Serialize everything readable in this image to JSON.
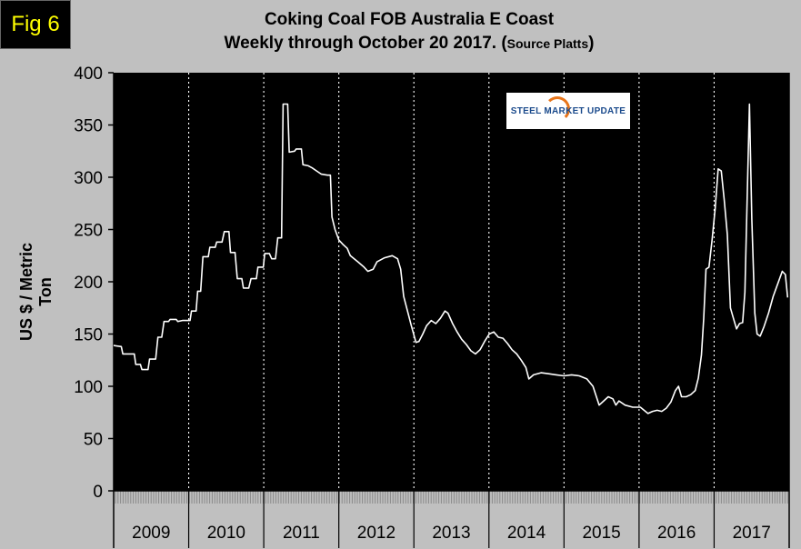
{
  "figure_tag": "Fig 6",
  "title_line1": "Coking Coal FOB Australia E Coast",
  "title_line2": "Weekly through October 20 2017. (",
  "title_source": "Source Platts",
  "title_close": ")",
  "logo_text": "STEEL MARKET UPDATE",
  "colors": {
    "background": "#c0c0c0",
    "plot_bg": "#000000",
    "line": "#ffffff",
    "badge_text": "#ffff00"
  },
  "chart_data": {
    "type": "line",
    "title": "Coking Coal FOB Australia E Coast Weekly through October 20 2017. (Source Platts)",
    "ylabel": "US $ / Metric Ton",
    "xlabel": "",
    "ylim": [
      0,
      400
    ],
    "yticks": [
      0,
      50,
      100,
      150,
      200,
      250,
      300,
      350,
      400
    ],
    "grid": false,
    "year_labels": [
      "2009",
      "2010",
      "2011",
      "2012",
      "2013",
      "2014",
      "2015",
      "2016",
      "2017"
    ],
    "x_range": [
      2009.0,
      2017.85
    ],
    "series": [
      {
        "values": [
          [
            2009.0,
            139
          ],
          [
            2009.1,
            138
          ],
          [
            2009.12,
            131
          ],
          [
            2009.27,
            131
          ],
          [
            2009.29,
            121
          ],
          [
            2009.35,
            121
          ],
          [
            2009.37,
            116
          ],
          [
            2009.45,
            116
          ],
          [
            2009.47,
            126
          ],
          [
            2009.55,
            126
          ],
          [
            2009.58,
            147
          ],
          [
            2009.63,
            147
          ],
          [
            2009.66,
            162
          ],
          [
            2009.72,
            162
          ],
          [
            2009.74,
            164
          ],
          [
            2009.82,
            164
          ],
          [
            2009.84,
            162
          ],
          [
            2009.9,
            163
          ],
          [
            2010.0,
            163
          ],
          [
            2010.02,
            172
          ],
          [
            2010.08,
            172
          ],
          [
            2010.1,
            191
          ],
          [
            2010.14,
            191
          ],
          [
            2010.17,
            224
          ],
          [
            2010.24,
            224
          ],
          [
            2010.26,
            233
          ],
          [
            2010.33,
            233
          ],
          [
            2010.35,
            238
          ],
          [
            2010.42,
            238
          ],
          [
            2010.45,
            248
          ],
          [
            2010.51,
            248
          ],
          [
            2010.53,
            228
          ],
          [
            2010.59,
            228
          ],
          [
            2010.62,
            203
          ],
          [
            2010.68,
            203
          ],
          [
            2010.7,
            194
          ],
          [
            2010.77,
            194
          ],
          [
            2010.8,
            203
          ],
          [
            2010.87,
            203
          ],
          [
            2010.89,
            214
          ],
          [
            2010.96,
            214
          ],
          [
            2010.98,
            227
          ],
          [
            2011.04,
            227
          ],
          [
            2011.07,
            222
          ],
          [
            2011.12,
            222
          ],
          [
            2011.15,
            242
          ],
          [
            2011.2,
            242
          ],
          [
            2011.22,
            370
          ],
          [
            2011.28,
            370
          ],
          [
            2011.3,
            324
          ],
          [
            2011.37,
            325
          ],
          [
            2011.39,
            327
          ],
          [
            2011.46,
            327
          ],
          [
            2011.48,
            312
          ],
          [
            2011.55,
            311
          ],
          [
            2011.6,
            309
          ],
          [
            2011.66,
            306
          ],
          [
            2011.72,
            303
          ],
          [
            2011.8,
            302
          ],
          [
            2011.84,
            302
          ],
          [
            2011.86,
            262
          ],
          [
            2011.9,
            250
          ],
          [
            2011.95,
            240
          ],
          [
            2012.0,
            236
          ],
          [
            2012.06,
            232
          ],
          [
            2012.1,
            225
          ],
          [
            2012.2,
            219
          ],
          [
            2012.28,
            214
          ],
          [
            2012.33,
            210
          ],
          [
            2012.4,
            212
          ],
          [
            2012.45,
            219
          ],
          [
            2012.55,
            223
          ],
          [
            2012.65,
            225
          ],
          [
            2012.72,
            222
          ],
          [
            2012.76,
            212
          ],
          [
            2012.8,
            186
          ],
          [
            2012.85,
            172
          ],
          [
            2012.9,
            158
          ],
          [
            2012.96,
            142
          ],
          [
            2013.0,
            143
          ],
          [
            2013.05,
            150
          ],
          [
            2013.1,
            158
          ],
          [
            2013.16,
            163
          ],
          [
            2013.22,
            160
          ],
          [
            2013.28,
            165
          ],
          [
            2013.34,
            172
          ],
          [
            2013.38,
            170
          ],
          [
            2013.44,
            160
          ],
          [
            2013.5,
            152
          ],
          [
            2013.56,
            145
          ],
          [
            2013.62,
            140
          ],
          [
            2013.68,
            134
          ],
          [
            2013.74,
            131
          ],
          [
            2013.8,
            135
          ],
          [
            2013.86,
            143
          ],
          [
            2013.92,
            150
          ],
          [
            2013.98,
            152
          ],
          [
            2014.04,
            147
          ],
          [
            2014.1,
            146
          ],
          [
            2014.16,
            141
          ],
          [
            2014.22,
            135
          ],
          [
            2014.28,
            131
          ],
          [
            2014.34,
            125
          ],
          [
            2014.4,
            118
          ],
          [
            2014.44,
            107
          ],
          [
            2014.5,
            111
          ],
          [
            2014.6,
            113
          ],
          [
            2014.7,
            112
          ],
          [
            2014.8,
            111
          ],
          [
            2014.9,
            110
          ],
          [
            2015.0,
            111
          ],
          [
            2015.1,
            110
          ],
          [
            2015.2,
            107
          ],
          [
            2015.28,
            100
          ],
          [
            2015.32,
            91
          ],
          [
            2015.36,
            82
          ],
          [
            2015.42,
            86
          ],
          [
            2015.48,
            90
          ],
          [
            2015.54,
            88
          ],
          [
            2015.58,
            82
          ],
          [
            2015.62,
            86
          ],
          [
            2015.7,
            82
          ],
          [
            2015.8,
            80
          ],
          [
            2015.9,
            80
          ],
          [
            2016.0,
            74
          ],
          [
            2016.06,
            76
          ],
          [
            2016.12,
            77
          ],
          [
            2016.18,
            76
          ],
          [
            2016.24,
            79
          ],
          [
            2016.3,
            85
          ],
          [
            2016.36,
            96
          ],
          [
            2016.4,
            100
          ],
          [
            2016.44,
            90
          ],
          [
            2016.5,
            90
          ],
          [
            2016.56,
            92
          ],
          [
            2016.62,
            96
          ],
          [
            2016.66,
            108
          ],
          [
            2016.7,
            130
          ],
          [
            2016.73,
            165
          ],
          [
            2016.76,
            212
          ],
          [
            2016.8,
            214
          ],
          [
            2016.84,
            240
          ],
          [
            2016.88,
            270
          ],
          [
            2016.92,
            308
          ],
          [
            2016.96,
            306
          ],
          [
            2017.0,
            278
          ],
          [
            2017.04,
            245
          ],
          [
            2017.08,
            175
          ],
          [
            2017.12,
            165
          ],
          [
            2017.16,
            155
          ],
          [
            2017.2,
            160
          ],
          [
            2017.24,
            161
          ],
          [
            2017.27,
            190
          ],
          [
            2017.3,
            280
          ],
          [
            2017.33,
            370
          ],
          [
            2017.36,
            260
          ],
          [
            2017.4,
            170
          ],
          [
            2017.43,
            150
          ],
          [
            2017.47,
            148
          ],
          [
            2017.52,
            157
          ],
          [
            2017.58,
            170
          ],
          [
            2017.64,
            186
          ],
          [
            2017.7,
            198
          ],
          [
            2017.76,
            210
          ],
          [
            2017.8,
            207
          ],
          [
            2017.83,
            185
          ]
        ]
      }
    ]
  }
}
